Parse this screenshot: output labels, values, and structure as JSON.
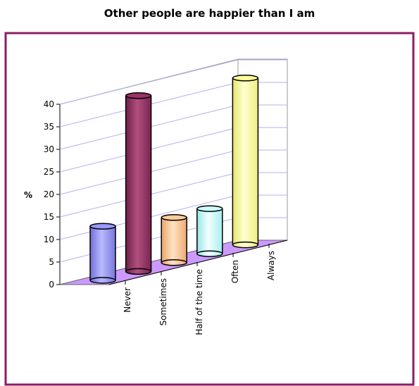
{
  "chart_data": {
    "type": "bar",
    "title": "Other people are happier than I am",
    "ylabel": "%",
    "xlabel": "",
    "categories": [
      "Never",
      "Sometimes",
      "Half of the time",
      "Often",
      "Always"
    ],
    "values": [
      12,
      39,
      10,
      10,
      37
    ],
    "ylim": [
      0,
      40
    ],
    "yticks": [
      0,
      5,
      10,
      15,
      20,
      25,
      30,
      35,
      40
    ],
    "grid": true,
    "colors": {
      "frame": "#8a1f63",
      "floor": "#cc99ff",
      "grid": "#b0b0ee",
      "bars": [
        "#9999ff",
        "#993366",
        "#ffcc99",
        "#ccffff",
        "#ffff99"
      ]
    }
  }
}
